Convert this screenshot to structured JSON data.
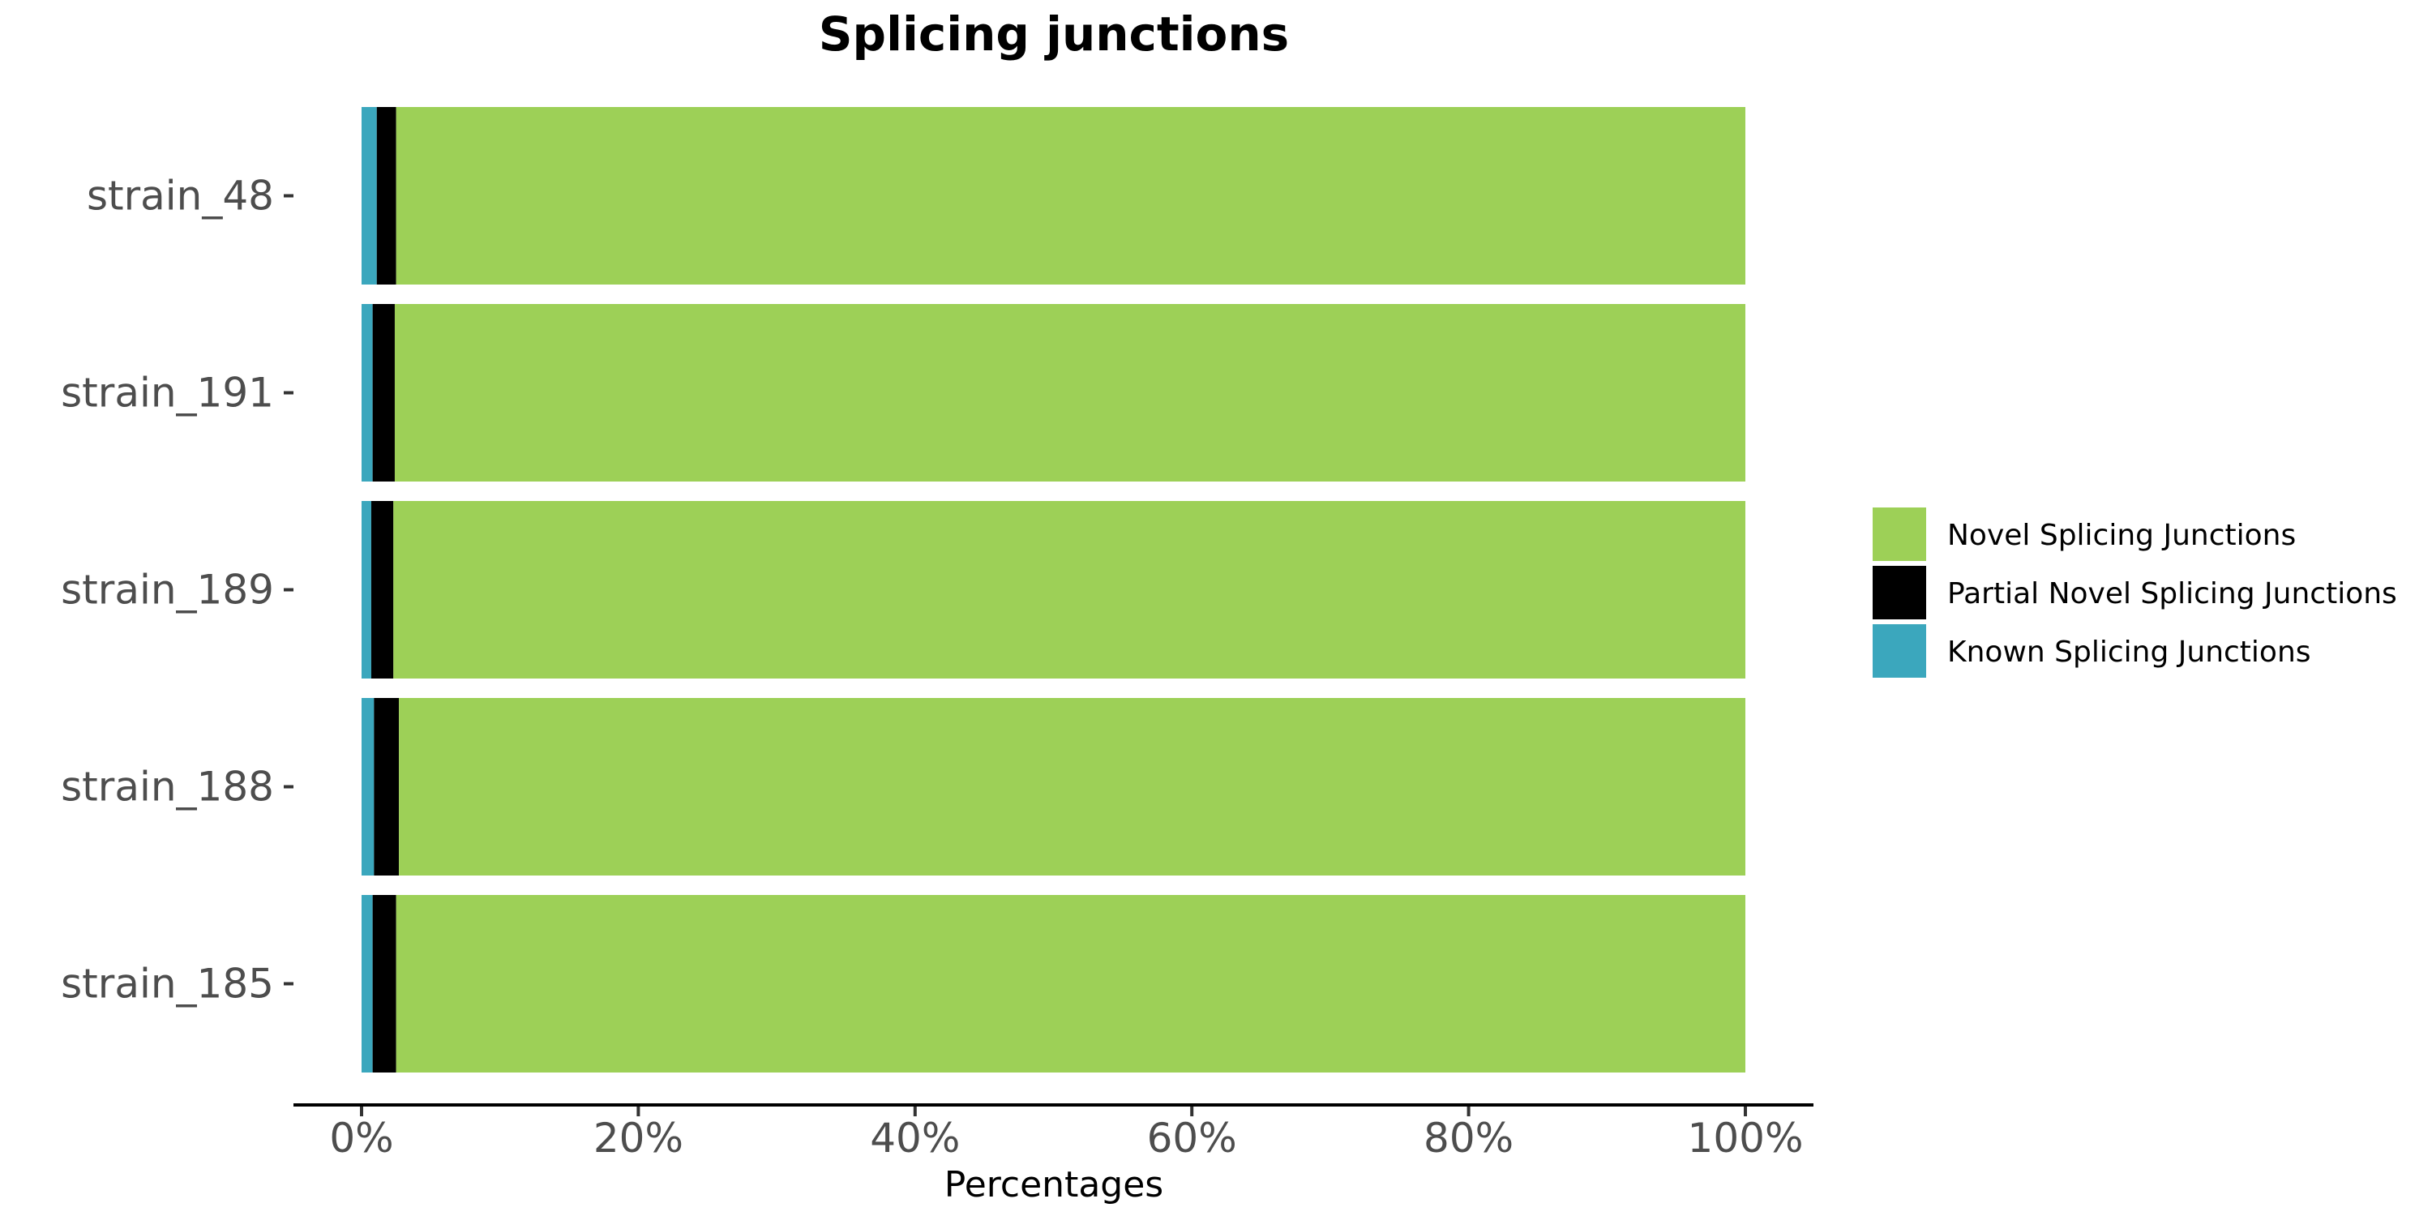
{
  "chart_data": {
    "type": "bar",
    "orientation": "horizontal",
    "stacked": true,
    "title": "Splicing junctions",
    "xlabel": "Percentages",
    "ylabel": "",
    "xlim": [
      0,
      100
    ],
    "x_ticks": [
      0,
      20,
      40,
      60,
      80,
      100
    ],
    "x_tick_labels": [
      "0%",
      "20%",
      "40%",
      "60%",
      "80%",
      "100%"
    ],
    "grid": false,
    "legend_position": "right",
    "categories": [
      "strain_48",
      "strain_191",
      "strain_189",
      "strain_188",
      "strain_185"
    ],
    "series": [
      {
        "name": "Known Splicing Junctions",
        "color": "#3ba7bd",
        "values": [
          1.1,
          0.8,
          0.7,
          0.9,
          0.8
        ]
      },
      {
        "name": "Partial Novel Splicing Junctions",
        "color": "#000000",
        "values": [
          1.4,
          1.6,
          1.6,
          1.8,
          1.7
        ]
      },
      {
        "name": "Novel Splicing Junctions",
        "color": "#9dd057",
        "values": [
          97.5,
          97.6,
          97.7,
          97.3,
          97.5
        ]
      }
    ],
    "legend_order": [
      "Novel Splicing Junctions",
      "Partial Novel Splicing Junctions",
      "Known Splicing Junctions"
    ]
  }
}
